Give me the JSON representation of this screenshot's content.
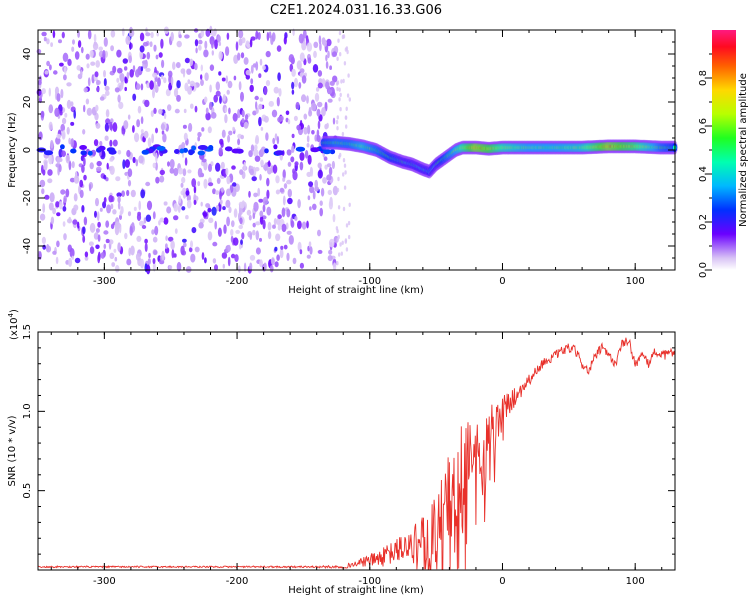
{
  "title": "C2E1.2024.031.16.33.G06",
  "chart_data": [
    {
      "type": "heatmap",
      "xlabel": "Height of straight line (km)",
      "ylabel": "Frequency (Hz)",
      "xlim": [
        -350,
        130
      ],
      "ylim": [
        -50,
        50
      ],
      "xticks": [
        -300,
        -200,
        -100,
        0,
        100
      ],
      "yticks": [
        -40,
        -20,
        0,
        20,
        40
      ],
      "colorbar": {
        "label": "Normalized spectral amplitude",
        "range": [
          0.0,
          1.0
        ],
        "ticks": [
          0.0,
          0.2,
          0.4,
          0.6,
          0.8
        ],
        "tick_labels": [
          "0.0",
          "0.2",
          "0.4",
          "0.6",
          "0.8"
        ]
      },
      "ridge": {
        "x": [
          -135,
          -125,
          -115,
          -105,
          -95,
          -85,
          -75,
          -68,
          -60,
          -55,
          -50,
          -45,
          -40,
          -35,
          -30,
          -20,
          -10,
          0,
          20,
          40,
          60,
          80,
          100,
          120,
          130
        ],
        "y": [
          3,
          3,
          2.5,
          1.5,
          0,
          -3,
          -5,
          -6,
          -8,
          -9,
          -6,
          -4,
          -2,
          0,
          1,
          1,
          0.5,
          1,
          1,
          1,
          1,
          1.5,
          1.5,
          1,
          1
        ],
        "amplitude": [
          0.5,
          0.55,
          0.55,
          0.6,
          0.55,
          0.5,
          0.45,
          0.45,
          0.4,
          0.4,
          0.45,
          0.5,
          0.55,
          0.6,
          0.7,
          0.85,
          0.8,
          0.7,
          0.6,
          0.6,
          0.65,
          0.85,
          0.75,
          0.55,
          0.5
        ]
      },
      "noise_region_x": [
        -350,
        -125
      ]
    },
    {
      "type": "line",
      "xlabel": "Height of straight line (km)",
      "ylabel": "SNR (10 * v/v)",
      "y_scale_label": "(x10",
      "y_scale_exp": "4",
      "xlim": [
        -350,
        130
      ],
      "ylim": [
        0,
        1.5
      ],
      "xticks": [
        -300,
        -200,
        -100,
        0,
        100
      ],
      "yticks": [
        0.5,
        1.0,
        1.5
      ],
      "ytick_labels": [
        "0.5",
        "1.0",
        "1.5"
      ],
      "series": [
        {
          "color": "#e8302a",
          "x": [
            -350,
            -300,
            -250,
            -200,
            -150,
            -120,
            -110,
            -100,
            -90,
            -80,
            -70,
            -60,
            -50,
            -45,
            -40,
            -35,
            -30,
            -25,
            -20,
            -15,
            -10,
            -5,
            0,
            5,
            10,
            15,
            20,
            25,
            30,
            35,
            40,
            45,
            50,
            55,
            60,
            65,
            70,
            75,
            80,
            85,
            90,
            95,
            100,
            105,
            110,
            115,
            120,
            125,
            130
          ],
          "y": [
            0.02,
            0.02,
            0.02,
            0.02,
            0.02,
            0.02,
            0.04,
            0.06,
            0.08,
            0.12,
            0.16,
            0.2,
            0.28,
            0.34,
            0.45,
            0.55,
            0.6,
            0.65,
            0.7,
            0.78,
            0.85,
            0.92,
            1.0,
            1.05,
            1.1,
            1.15,
            1.2,
            1.25,
            1.3,
            1.33,
            1.35,
            1.38,
            1.4,
            1.38,
            1.3,
            1.25,
            1.35,
            1.4,
            1.35,
            1.3,
            1.42,
            1.45,
            1.3,
            1.35,
            1.3,
            1.38,
            1.35,
            1.36,
            1.38
          ],
          "noise_amplitude": [
            0.005,
            0.005,
            0.005,
            0.005,
            0.005,
            0.01,
            0.02,
            0.04,
            0.06,
            0.08,
            0.1,
            0.14,
            0.2,
            0.25,
            0.3,
            0.32,
            0.32,
            0.3,
            0.26,
            0.24,
            0.2,
            0.16,
            0.12,
            0.08,
            0.06,
            0.05,
            0.04,
            0.03,
            0.03,
            0.03,
            0.03,
            0.03,
            0.03,
            0.03,
            0.03,
            0.03,
            0.03,
            0.03,
            0.03,
            0.03,
            0.03,
            0.03,
            0.03,
            0.03,
            0.03,
            0.03,
            0.03,
            0.03,
            0.03
          ]
        }
      ]
    }
  ]
}
